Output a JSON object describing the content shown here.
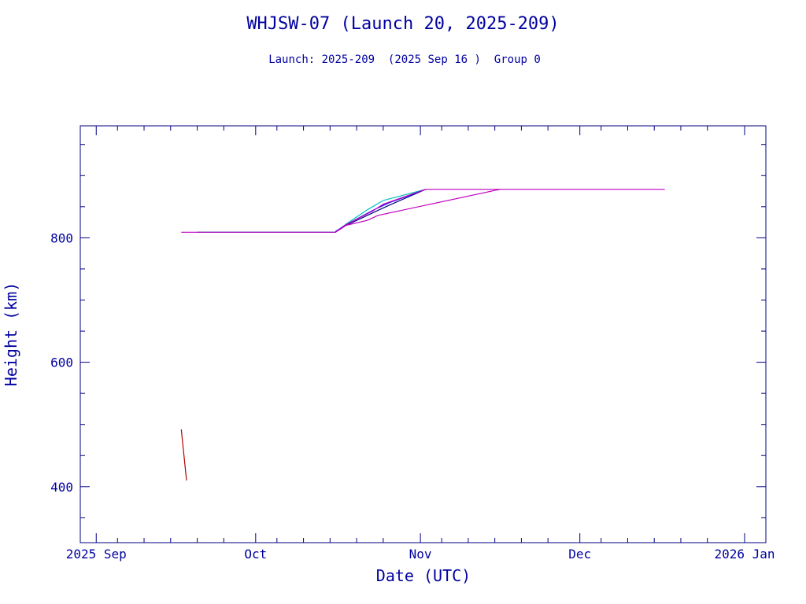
{
  "chart_data": {
    "type": "line",
    "title": "WHJSW-07 (Launch 20, 2025-209)",
    "subtitle": "Launch: 2025-209  (2025 Sep 16 )  Group 0",
    "xlabel": "Date (UTC)",
    "ylabel": "Height (km)",
    "x_is_date": true,
    "xlim": [
      "2025-08-29",
      "2026-01-05"
    ],
    "ylim": [
      310,
      980
    ],
    "x_ticks": [
      {
        "date": "2025-09-01",
        "label": "2025 Sep"
      },
      {
        "date": "2025-10-01",
        "label": "Oct"
      },
      {
        "date": "2025-11-01",
        "label": "Nov"
      },
      {
        "date": "2025-12-01",
        "label": "Dec"
      },
      {
        "date": "2026-01-01",
        "label": "2026 Jan"
      }
    ],
    "y_ticks": [
      400,
      600,
      800
    ],
    "grid": false,
    "series": [
      {
        "color": "#b00000",
        "points": [
          [
            "2025-09-17",
            492
          ],
          [
            "2025-09-18",
            410
          ]
        ]
      },
      {
        "color": "#000080",
        "points": [
          [
            "2025-09-20",
            809
          ],
          [
            "2025-10-16",
            809
          ],
          [
            "2025-10-18",
            820
          ],
          [
            "2025-10-23",
            840
          ],
          [
            "2025-10-26",
            852
          ],
          [
            "2025-11-02",
            878
          ]
        ]
      },
      {
        "color": "#00c0c0",
        "points": [
          [
            "2025-09-20",
            809
          ],
          [
            "2025-10-16",
            809
          ],
          [
            "2025-10-18",
            822
          ],
          [
            "2025-10-22",
            845
          ],
          [
            "2025-10-25",
            860
          ],
          [
            "2025-11-02",
            878
          ]
        ]
      },
      {
        "color": "#0000ff",
        "points": [
          [
            "2025-10-16",
            810
          ],
          [
            "2025-10-18",
            821
          ],
          [
            "2025-10-23",
            844
          ],
          [
            "2025-10-26",
            856
          ],
          [
            "2025-11-02",
            878
          ]
        ]
      },
      {
        "color": "#c000c0",
        "points": [
          [
            "2025-09-17",
            809
          ],
          [
            "2025-10-16",
            809
          ],
          [
            "2025-10-18",
            821
          ],
          [
            "2025-10-23",
            843
          ],
          [
            "2025-10-25",
            854
          ],
          [
            "2025-11-02",
            878
          ],
          [
            "2025-12-17",
            878
          ]
        ]
      },
      {
        "color": "#c000c0",
        "points": [
          [
            "2025-10-16",
            809
          ],
          [
            "2025-10-18",
            820
          ],
          [
            "2025-10-22",
            828
          ],
          [
            "2025-10-24",
            836
          ],
          [
            "2025-11-16",
            878
          ]
        ]
      }
    ]
  }
}
